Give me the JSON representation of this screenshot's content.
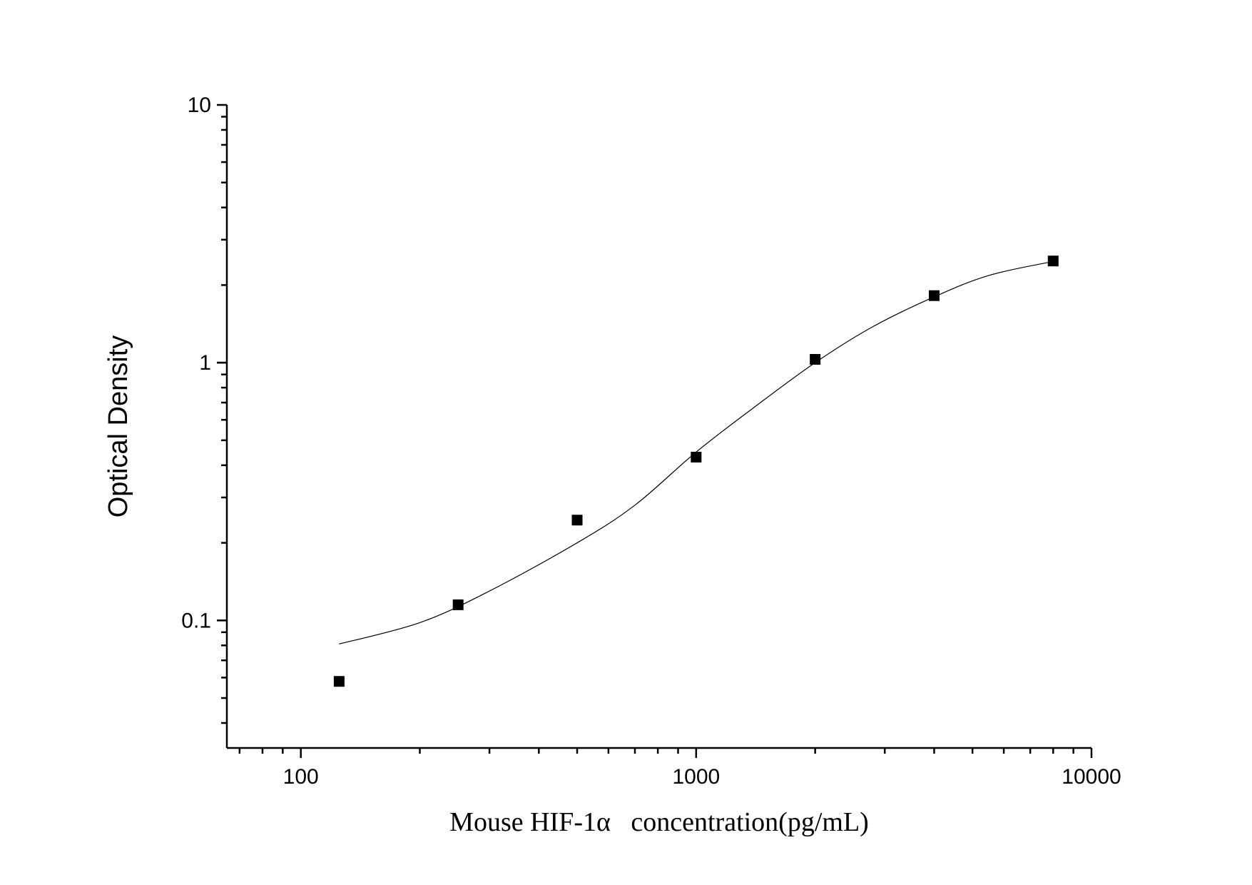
{
  "chart_data": {
    "type": "scatter",
    "xlabel": "Mouse HIF-1α   concentration(pg/mL)",
    "ylabel": "Optical Density",
    "x_scale": "log",
    "y_scale": "log",
    "xlim": [
      65,
      10000
    ],
    "ylim": [
      0.032,
      10
    ],
    "x_ticks": [
      {
        "value": 100,
        "label": "100"
      },
      {
        "value": 1000,
        "label": "1000"
      },
      {
        "value": 10000,
        "label": "10000"
      }
    ],
    "y_ticks": [
      {
        "value": 0.1,
        "label": "0.1"
      },
      {
        "value": 1,
        "label": "1"
      },
      {
        "value": 10,
        "label": "10"
      }
    ],
    "grid": false,
    "series": [
      {
        "marker": "square",
        "color": "#000000",
        "points": [
          {
            "x": 125,
            "y": 0.058
          },
          {
            "x": 250,
            "y": 0.115
          },
          {
            "x": 500,
            "y": 0.245
          },
          {
            "x": 1000,
            "y": 0.43
          },
          {
            "x": 2000,
            "y": 1.03
          },
          {
            "x": 4000,
            "y": 1.82
          },
          {
            "x": 8000,
            "y": 2.48
          }
        ]
      }
    ],
    "fit_curve": {
      "color": "#000000",
      "points": [
        {
          "x": 125,
          "y": 0.081
        },
        {
          "x": 200,
          "y": 0.098
        },
        {
          "x": 300,
          "y": 0.13
        },
        {
          "x": 500,
          "y": 0.2
        },
        {
          "x": 700,
          "y": 0.28
        },
        {
          "x": 1000,
          "y": 0.45
        },
        {
          "x": 1400,
          "y": 0.67
        },
        {
          "x": 2000,
          "y": 1.0
        },
        {
          "x": 2800,
          "y": 1.38
        },
        {
          "x": 4000,
          "y": 1.8
        },
        {
          "x": 5500,
          "y": 2.18
        },
        {
          "x": 8000,
          "y": 2.47
        }
      ]
    }
  }
}
